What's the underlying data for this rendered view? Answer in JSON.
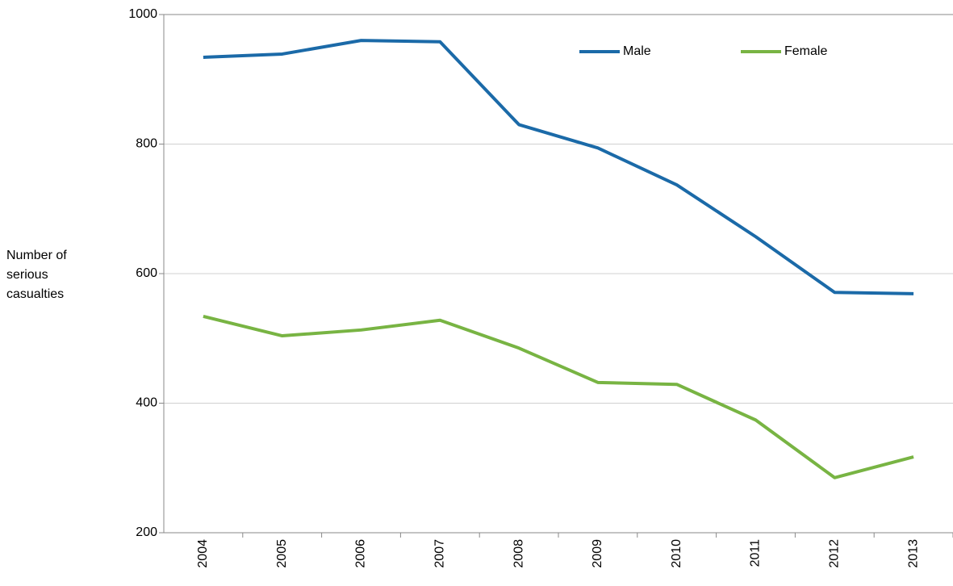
{
  "chart_data": {
    "type": "line",
    "y_label": "Number of serious casualties",
    "categories": [
      "2004",
      "2005",
      "2006",
      "2007",
      "2008",
      "2009",
      "2010",
      "2011",
      "2012",
      "2013"
    ],
    "series": [
      {
        "name": "Male",
        "color": "#1b6aa8",
        "values": [
          934,
          939,
          960,
          958,
          830,
          794,
          737,
          657,
          571,
          569
        ]
      },
      {
        "name": "Female",
        "color": "#78b443",
        "values": [
          534,
          504,
          513,
          528,
          485,
          432,
          429,
          374,
          285,
          317
        ]
      }
    ],
    "ylim": [
      200,
      1000
    ],
    "yticks": [
      200,
      400,
      600,
      800,
      1000
    ],
    "grid": true
  }
}
